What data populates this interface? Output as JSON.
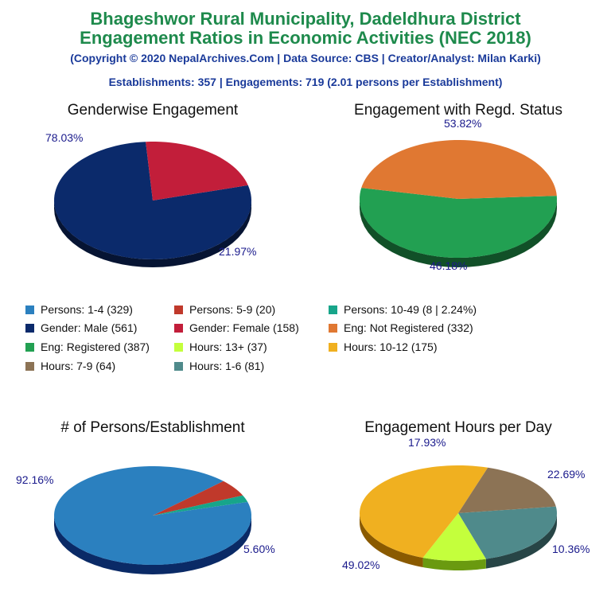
{
  "header": {
    "title_line1": "Bhageshwor Rural Municipality, Dadeldhura District",
    "title_line2": "Engagement Ratios in Economic Activities (NEC 2018)",
    "copyright": "(Copyright © 2020 NepalArchives.Com | Data Source: CBS | Creator/Analyst: Milan Karki)",
    "summary": "Establishments: 357 | Engagements: 719 (2.01 persons per Establishment)"
  },
  "legend": [
    {
      "label": "Persons: 1-4 (329)",
      "color": "#2b80bf"
    },
    {
      "label": "Persons: 5-9 (20)",
      "color": "#c0392b"
    },
    {
      "label": "Persons: 10-49 (8 | 2.24%)",
      "color": "#17a58a"
    },
    {
      "label": "Gender: Male (561)",
      "color": "#0b2a6b"
    },
    {
      "label": "Gender: Female (158)",
      "color": "#c21e3a"
    },
    {
      "label": "Eng: Not Registered (332)",
      "color": "#e07832"
    },
    {
      "label": "Eng: Registered (387)",
      "color": "#22a052"
    },
    {
      "label": "Hours: 13+ (37)",
      "color": "#c4ff3c"
    },
    {
      "label": "Hours: 10-12 (175)",
      "color": "#f0b020"
    },
    {
      "label": "Hours: 7-9 (64)",
      "color": "#8c7355"
    },
    {
      "label": "Hours: 1-6 (81)",
      "color": "#4f8a8b"
    }
  ],
  "chart_data": [
    {
      "type": "pie",
      "title": "Genderwise Engagement",
      "slices": [
        {
          "name": "Gender: Male",
          "value": 561,
          "label": "78.03%",
          "color": "#0b2a6b",
          "side": "#061433"
        },
        {
          "name": "Gender: Female",
          "value": 158,
          "label": "21.97%",
          "color": "#c21e3a",
          "side": "#6a0f1c"
        }
      ]
    },
    {
      "type": "pie",
      "title": "Engagement with Regd. Status",
      "slices": [
        {
          "name": "Eng: Registered",
          "value": 387,
          "label": "53.82%",
          "color": "#22a052",
          "side": "#115028"
        },
        {
          "name": "Eng: Not Registered",
          "value": 332,
          "label": "46.18%",
          "color": "#e07832",
          "side": "#7a2a0c"
        }
      ]
    },
    {
      "type": "pie",
      "title": "# of Persons/Establishment",
      "slices": [
        {
          "name": "Persons: 1-4",
          "value": 329,
          "label": "92.16%",
          "color": "#2b80bf",
          "side": "#0a2a66"
        },
        {
          "name": "Persons: 5-9",
          "value": 20,
          "label": "5.60%",
          "color": "#c0392b",
          "side": "#6a1510"
        },
        {
          "name": "Persons: 10-49",
          "value": 8,
          "label": "",
          "color": "#17a58a",
          "side": "#0a5a48"
        }
      ]
    },
    {
      "type": "pie",
      "title": "Engagement Hours per Day",
      "slices": [
        {
          "name": "Hours: 1-6",
          "value": 81,
          "label": "22.69%",
          "color": "#4f8a8b",
          "side": "#274546"
        },
        {
          "name": "Hours: 13+",
          "value": 37,
          "label": "10.36%",
          "color": "#c4ff3c",
          "side": "#6a9a10"
        },
        {
          "name": "Hours: 10-12",
          "value": 175,
          "label": "49.02%",
          "color": "#f0b020",
          "side": "#8a5a00"
        },
        {
          "name": "Hours: 7-9",
          "value": 64,
          "label": "17.93%",
          "color": "#8c7355",
          "side": "#4a3a28"
        }
      ]
    }
  ]
}
